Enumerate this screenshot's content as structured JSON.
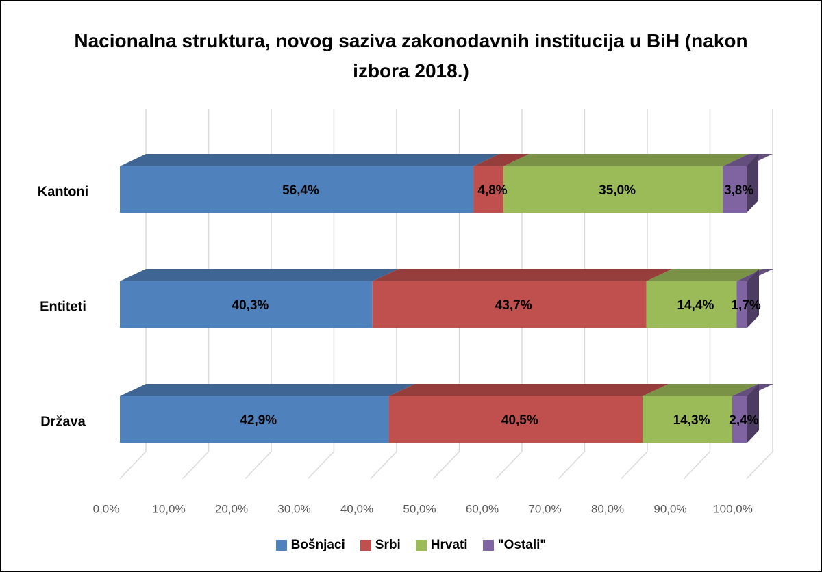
{
  "chart_data": {
    "type": "bar3d_stacked_horizontal",
    "title": "Nacionalna struktura, novog saziva zakonodavnih institucija u BiH (nakon izbora 2018.)",
    "categories": [
      "Kantoni",
      "Entiteti",
      "Država"
    ],
    "series": [
      {
        "name": "Bošnjaci",
        "color": "#4f81bd",
        "values": [
          56.4,
          40.3,
          42.9
        ],
        "value_labels": [
          "56,4%",
          "40,3%",
          "42,9%"
        ]
      },
      {
        "name": "Srbi",
        "color": "#c0504d",
        "values": [
          4.8,
          43.7,
          40.5
        ],
        "value_labels": [
          "4,8%",
          "43,7%",
          "40,5%"
        ]
      },
      {
        "name": "Hrvati",
        "color": "#9bbb59",
        "values": [
          35.0,
          14.4,
          14.3
        ],
        "value_labels": [
          "35,0%",
          "14,4%",
          "14,3%"
        ]
      },
      {
        "name": "\"Ostali\"",
        "color": "#8064a2",
        "values": [
          3.8,
          1.7,
          2.4
        ],
        "value_labels": [
          "3,8%",
          "1,7%",
          "2,4%"
        ]
      }
    ],
    "xlim": [
      0,
      100
    ],
    "xticks": [
      {
        "value": 0,
        "label": "0,0%"
      },
      {
        "value": 10,
        "label": "10,0%"
      },
      {
        "value": 20,
        "label": "20,0%"
      },
      {
        "value": 30,
        "label": "30,0%"
      },
      {
        "value": 40,
        "label": "40,0%"
      },
      {
        "value": 50,
        "label": "50,0%"
      },
      {
        "value": 60,
        "label": "60,0%"
      },
      {
        "value": 70,
        "label": "70,0%"
      },
      {
        "value": 80,
        "label": "80,0%"
      },
      {
        "value": 90,
        "label": "90,0%"
      },
      {
        "value": 100,
        "label": "100,0%"
      }
    ],
    "grid": true,
    "legend": "bottom"
  }
}
